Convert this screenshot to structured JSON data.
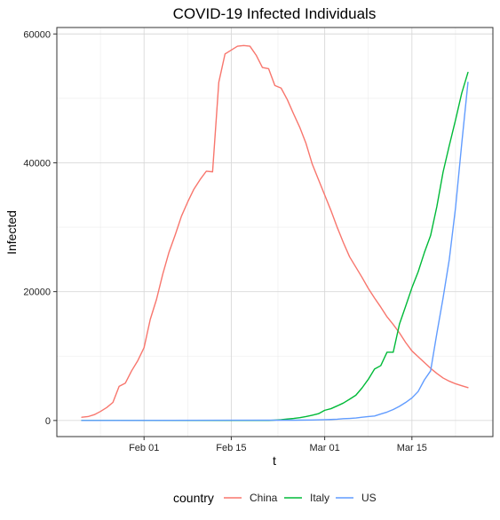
{
  "chart_data": {
    "type": "line",
    "title": "COVID-19 Infected Individuals",
    "xlabel": "t",
    "ylabel": "Infected",
    "x_axis_type": "date",
    "xlim": [
      "2020-01-18",
      "2020-03-28"
    ],
    "ylim": [
      -2500,
      61000
    ],
    "x_ticks": [
      {
        "date": "2020-02-01",
        "label": "Feb 01"
      },
      {
        "date": "2020-02-15",
        "label": "Feb 15"
      },
      {
        "date": "2020-03-01",
        "label": "Mar 01"
      },
      {
        "date": "2020-03-15",
        "label": "Mar 15"
      }
    ],
    "y_ticks": [
      {
        "value": 0,
        "label": "0"
      },
      {
        "value": 20000,
        "label": "20000"
      },
      {
        "value": 40000,
        "label": "40000"
      },
      {
        "value": 60000,
        "label": "60000"
      }
    ],
    "grid": true,
    "legend": {
      "title": "country",
      "position": "bottom"
    },
    "series": [
      {
        "name": "China",
        "color": "#F8766D",
        "points": [
          [
            "2020-01-22",
            500
          ],
          [
            "2020-01-23",
            600
          ],
          [
            "2020-01-24",
            900
          ],
          [
            "2020-01-25",
            1400
          ],
          [
            "2020-01-26",
            2000
          ],
          [
            "2020-01-27",
            2800
          ],
          [
            "2020-01-28",
            5300
          ],
          [
            "2020-01-29",
            5800
          ],
          [
            "2020-01-30",
            7700
          ],
          [
            "2020-01-31",
            9300
          ],
          [
            "2020-02-01",
            11300
          ],
          [
            "2020-02-02",
            15700
          ],
          [
            "2020-02-03",
            18800
          ],
          [
            "2020-02-04",
            22700
          ],
          [
            "2020-02-05",
            26100
          ],
          [
            "2020-02-06",
            28800
          ],
          [
            "2020-02-07",
            31700
          ],
          [
            "2020-02-08",
            33900
          ],
          [
            "2020-02-09",
            35900
          ],
          [
            "2020-02-10",
            37400
          ],
          [
            "2020-02-11",
            38700
          ],
          [
            "2020-02-12",
            38600
          ],
          [
            "2020-02-13",
            52500
          ],
          [
            "2020-02-14",
            56900
          ],
          [
            "2020-02-15",
            57500
          ],
          [
            "2020-02-16",
            58100
          ],
          [
            "2020-02-17",
            58200
          ],
          [
            "2020-02-18",
            58100
          ],
          [
            "2020-02-19",
            56700
          ],
          [
            "2020-02-20",
            54800
          ],
          [
            "2020-02-21",
            54600
          ],
          [
            "2020-02-22",
            52000
          ],
          [
            "2020-02-23",
            51600
          ],
          [
            "2020-02-24",
            49800
          ],
          [
            "2020-02-25",
            47600
          ],
          [
            "2020-02-26",
            45500
          ],
          [
            "2020-02-27",
            43000
          ],
          [
            "2020-02-28",
            39800
          ],
          [
            "2020-02-29",
            37400
          ],
          [
            "2020-03-01",
            35000
          ],
          [
            "2020-03-02",
            32600
          ],
          [
            "2020-03-03",
            30000
          ],
          [
            "2020-03-04",
            27600
          ],
          [
            "2020-03-05",
            25400
          ],
          [
            "2020-03-06",
            23800
          ],
          [
            "2020-03-07",
            22200
          ],
          [
            "2020-03-08",
            20500
          ],
          [
            "2020-03-09",
            19000
          ],
          [
            "2020-03-10",
            17600
          ],
          [
            "2020-03-11",
            16100
          ],
          [
            "2020-03-12",
            14900
          ],
          [
            "2020-03-13",
            13600
          ],
          [
            "2020-03-14",
            12100
          ],
          [
            "2020-03-15",
            10800
          ],
          [
            "2020-03-16",
            9900
          ],
          [
            "2020-03-17",
            9000
          ],
          [
            "2020-03-18",
            8100
          ],
          [
            "2020-03-19",
            7300
          ],
          [
            "2020-03-20",
            6600
          ],
          [
            "2020-03-21",
            6100
          ],
          [
            "2020-03-22",
            5700
          ],
          [
            "2020-03-23",
            5400
          ],
          [
            "2020-03-24",
            5100
          ]
        ]
      },
      {
        "name": "Italy",
        "color": "#00BA38",
        "points": [
          [
            "2020-01-22",
            0
          ],
          [
            "2020-02-20",
            0
          ],
          [
            "2020-02-21",
            10
          ],
          [
            "2020-02-22",
            60
          ],
          [
            "2020-02-23",
            130
          ],
          [
            "2020-02-24",
            220
          ],
          [
            "2020-02-25",
            310
          ],
          [
            "2020-02-26",
            430
          ],
          [
            "2020-02-27",
            600
          ],
          [
            "2020-02-28",
            820
          ],
          [
            "2020-02-29",
            1050
          ],
          [
            "2020-03-01",
            1580
          ],
          [
            "2020-03-02",
            1830
          ],
          [
            "2020-03-03",
            2260
          ],
          [
            "2020-03-04",
            2710
          ],
          [
            "2020-03-05",
            3300
          ],
          [
            "2020-03-06",
            3920
          ],
          [
            "2020-03-07",
            5060
          ],
          [
            "2020-03-08",
            6390
          ],
          [
            "2020-03-09",
            7990
          ],
          [
            "2020-03-10",
            8510
          ],
          [
            "2020-03-11",
            10590
          ],
          [
            "2020-03-12",
            10590
          ],
          [
            "2020-03-13",
            14960
          ],
          [
            "2020-03-14",
            17750
          ],
          [
            "2020-03-15",
            20600
          ],
          [
            "2020-03-16",
            23070
          ],
          [
            "2020-03-17",
            26060
          ],
          [
            "2020-03-18",
            28710
          ],
          [
            "2020-03-19",
            33190
          ],
          [
            "2020-03-20",
            38550
          ],
          [
            "2020-03-21",
            42680
          ],
          [
            "2020-03-22",
            46640
          ],
          [
            "2020-03-23",
            50820
          ],
          [
            "2020-03-24",
            54030
          ]
        ]
      },
      {
        "name": "US",
        "color": "#619CFF",
        "points": [
          [
            "2020-01-22",
            0
          ],
          [
            "2020-02-25",
            50
          ],
          [
            "2020-02-28",
            80
          ],
          [
            "2020-03-01",
            120
          ],
          [
            "2020-03-02",
            150
          ],
          [
            "2020-03-03",
            200
          ],
          [
            "2020-03-04",
            280
          ],
          [
            "2020-03-05",
            320
          ],
          [
            "2020-03-06",
            380
          ],
          [
            "2020-03-07",
            500
          ],
          [
            "2020-03-08",
            600
          ],
          [
            "2020-03-09",
            700
          ],
          [
            "2020-03-10",
            1000
          ],
          [
            "2020-03-11",
            1300
          ],
          [
            "2020-03-12",
            1700
          ],
          [
            "2020-03-13",
            2200
          ],
          [
            "2020-03-14",
            2800
          ],
          [
            "2020-03-15",
            3500
          ],
          [
            "2020-03-16",
            4500
          ],
          [
            "2020-03-17",
            6300
          ],
          [
            "2020-03-18",
            7700
          ],
          [
            "2020-03-19",
            13500
          ],
          [
            "2020-03-20",
            19000
          ],
          [
            "2020-03-21",
            25000
          ],
          [
            "2020-03-22",
            33000
          ],
          [
            "2020-03-23",
            43000
          ],
          [
            "2020-03-24",
            52500
          ]
        ]
      }
    ]
  }
}
